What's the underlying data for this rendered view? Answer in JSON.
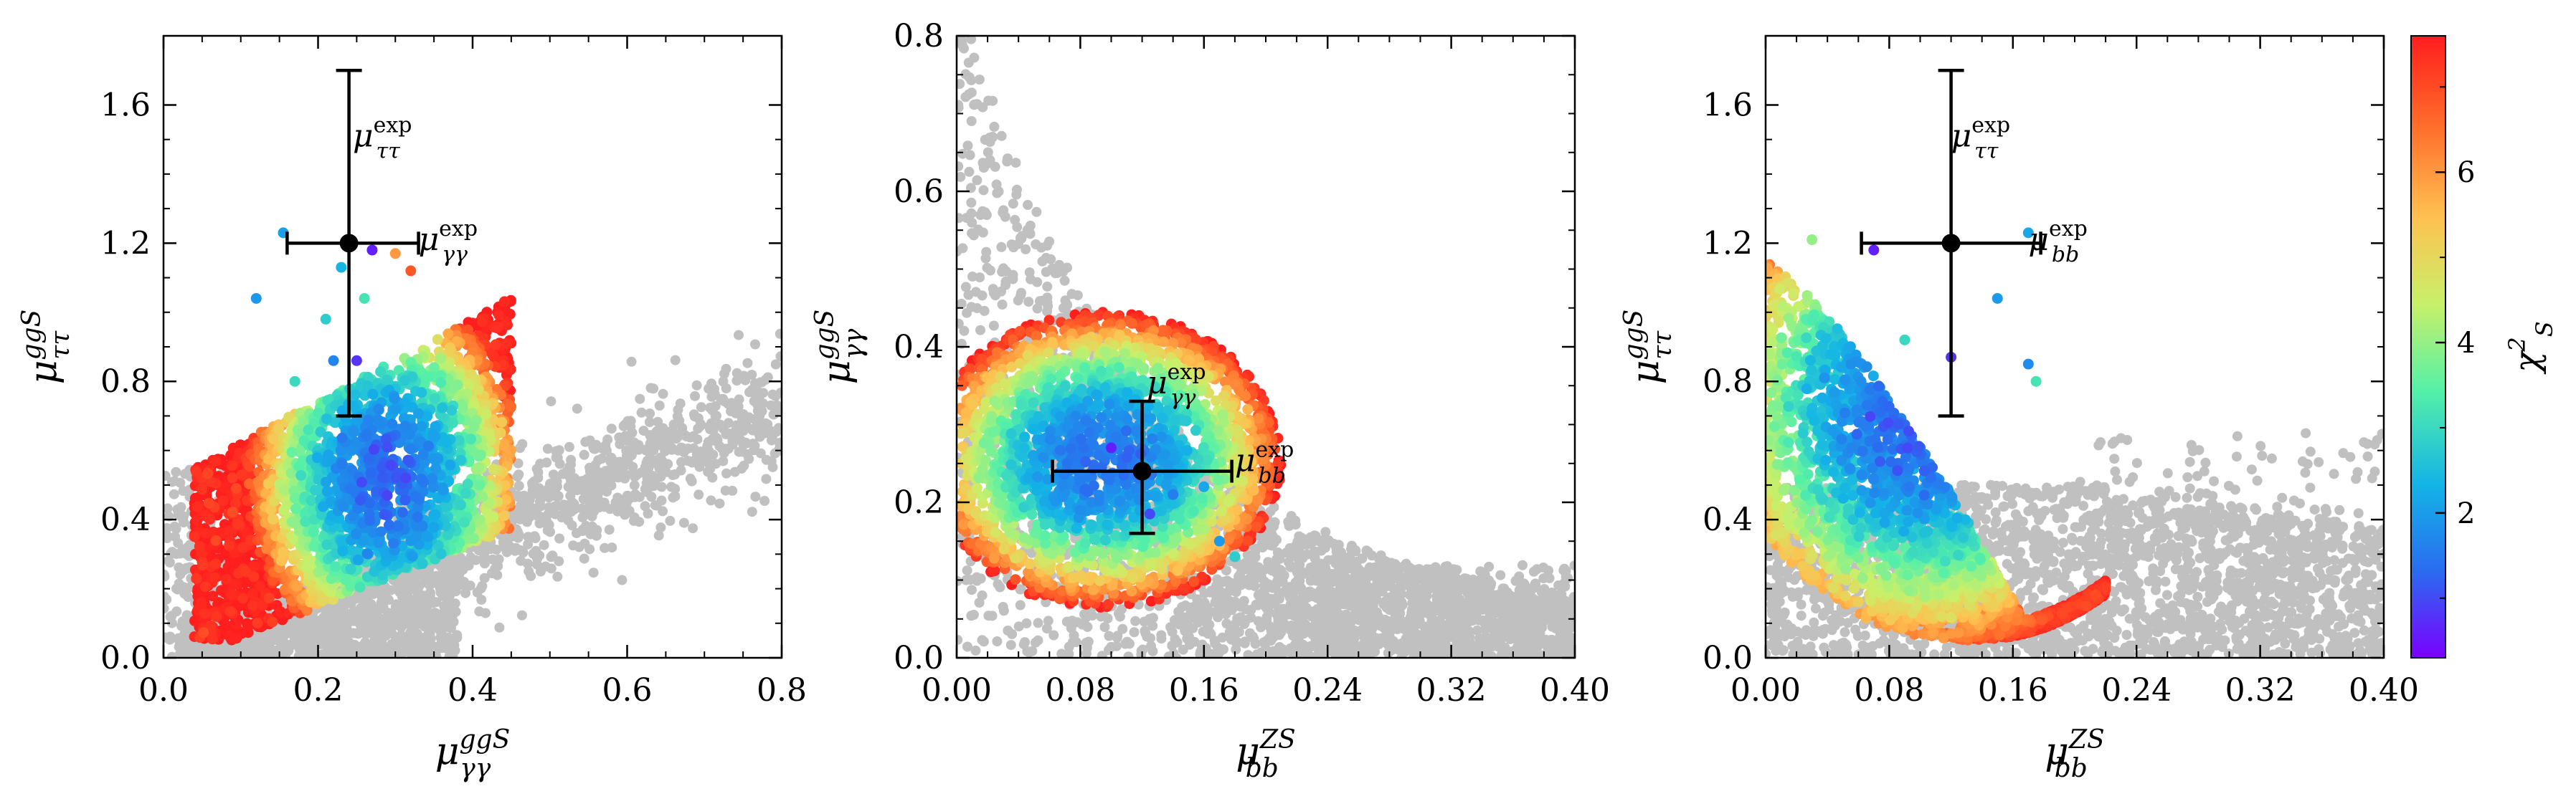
{
  "colorbar": {
    "label_base": "χ",
    "label_sup": "2",
    "label_sub": "S",
    "range": [
      0.3,
      7.6
    ],
    "ticks": [
      2,
      4,
      6
    ],
    "tick_labels": [
      "2",
      "4",
      "6"
    ],
    "colors": [
      "#7a00ff",
      "#2a6cf0",
      "#14b4e6",
      "#55f0a8",
      "#c8f06a",
      "#ffc050",
      "#ff6a2a",
      "#ff1e1e"
    ]
  },
  "chart_data": [
    {
      "type": "scatter",
      "id": "left",
      "xlabel_base": "μ",
      "xlabel_sub": "γγ",
      "xlabel_sup": "ggS",
      "ylabel_base": "μ",
      "ylabel_sub": "ττ",
      "ylabel_sup": "ggS",
      "xlim": [
        0.0,
        0.8
      ],
      "ylim": [
        0.0,
        1.8
      ],
      "xticks": [
        0.0,
        0.2,
        0.4,
        0.6,
        0.8
      ],
      "xtick_labels": [
        "0.0",
        "0.2",
        "0.4",
        "0.6",
        "0.8"
      ],
      "yticks": [
        0.0,
        0.4,
        0.8,
        1.2,
        1.6
      ],
      "ytick_labels": [
        "0.0",
        "0.4",
        "0.8",
        "1.2",
        "1.6"
      ],
      "grey_color": "#c0c0c0",
      "experimental_point": {
        "x": 0.24,
        "y": 1.2,
        "x_err": [
          0.08,
          0.09
        ],
        "y_err": [
          0.5,
          0.5
        ]
      },
      "annotations": [
        {
          "base": "μ",
          "sub": "ττ",
          "sup": "exp",
          "x": 0.245,
          "y": 1.48
        },
        {
          "base": "μ",
          "sub": "γγ",
          "sup": "exp",
          "x": 0.33,
          "y": 1.18
        }
      ],
      "outliers": [
        {
          "x": 0.155,
          "y": 1.23,
          "c": 2.1
        },
        {
          "x": 0.27,
          "y": 1.18,
          "c": 0.6
        },
        {
          "x": 0.12,
          "y": 1.04,
          "c": 2.0
        },
        {
          "x": 0.23,
          "y": 1.13,
          "c": 2.4
        },
        {
          "x": 0.25,
          "y": 0.86,
          "c": 0.8
        },
        {
          "x": 0.22,
          "y": 0.86,
          "c": 1.7
        },
        {
          "x": 0.17,
          "y": 0.8,
          "c": 3.0
        },
        {
          "x": 0.21,
          "y": 0.98,
          "c": 2.8
        },
        {
          "x": 0.26,
          "y": 1.04,
          "c": 3.2
        },
        {
          "x": 0.3,
          "y": 1.17,
          "c": 6.0
        },
        {
          "x": 0.32,
          "y": 1.12,
          "c": 6.8
        }
      ]
    },
    {
      "type": "scatter",
      "id": "middle",
      "xlabel_base": "μ",
      "xlabel_sub": "bb",
      "xlabel_sup": "ZS",
      "ylabel_base": "μ",
      "ylabel_sub": "γγ",
      "ylabel_sup": "ggS",
      "xlim": [
        0.0,
        0.4
      ],
      "ylim": [
        0.0,
        0.8
      ],
      "xticks": [
        0.0,
        0.08,
        0.16,
        0.24,
        0.32,
        0.4
      ],
      "xtick_labels": [
        "0.00",
        "0.08",
        "0.16",
        "0.24",
        "0.32",
        "0.40"
      ],
      "yticks": [
        0.0,
        0.2,
        0.4,
        0.6,
        0.8
      ],
      "ytick_labels": [
        "0.0",
        "0.2",
        "0.4",
        "0.6",
        "0.8"
      ],
      "grey_color": "#c0c0c0",
      "experimental_point": {
        "x": 0.12,
        "y": 0.24,
        "x_err": [
          0.058,
          0.058
        ],
        "y_err": [
          0.08,
          0.09
        ]
      },
      "annotations": [
        {
          "base": "μ",
          "sub": "γγ",
          "sup": "exp",
          "x": 0.123,
          "y": 0.34
        },
        {
          "base": "μ",
          "sub": "bb",
          "sup": "exp",
          "x": 0.18,
          "y": 0.24
        }
      ],
      "outliers": [
        {
          "x": 0.1,
          "y": 0.27,
          "c": 0.6
        },
        {
          "x": 0.125,
          "y": 0.185,
          "c": 1.0
        },
        {
          "x": 0.14,
          "y": 0.21,
          "c": 1.6
        },
        {
          "x": 0.16,
          "y": 0.22,
          "c": 2.2
        },
        {
          "x": 0.17,
          "y": 0.15,
          "c": 2.0
        },
        {
          "x": 0.08,
          "y": 0.19,
          "c": 1.8
        },
        {
          "x": 0.18,
          "y": 0.13,
          "c": 2.8
        }
      ]
    },
    {
      "type": "scatter",
      "id": "right",
      "xlabel_base": "μ",
      "xlabel_sub": "bb",
      "xlabel_sup": "ZS",
      "ylabel_base": "μ",
      "ylabel_sub": "ττ",
      "ylabel_sup": "ggS",
      "xlim": [
        0.0,
        0.4
      ],
      "ylim": [
        0.0,
        1.8
      ],
      "xticks": [
        0.0,
        0.08,
        0.16,
        0.24,
        0.32,
        0.4
      ],
      "xtick_labels": [
        "0.00",
        "0.08",
        "0.16",
        "0.24",
        "0.32",
        "0.40"
      ],
      "yticks": [
        0.0,
        0.4,
        0.8,
        1.2,
        1.6
      ],
      "ytick_labels": [
        "0.0",
        "0.4",
        "0.8",
        "1.2",
        "1.6"
      ],
      "grey_color": "#c0c0c0",
      "experimental_point": {
        "x": 0.12,
        "y": 1.2,
        "x_err": [
          0.058,
          0.058
        ],
        "y_err": [
          0.5,
          0.5
        ]
      },
      "annotations": [
        {
          "base": "μ",
          "sub": "ττ",
          "sup": "exp",
          "x": 0.12,
          "y": 1.48
        },
        {
          "base": "μ",
          "sub": "bb",
          "sup": "exp",
          "x": 0.17,
          "y": 1.18
        }
      ],
      "outliers": [
        {
          "x": 0.03,
          "y": 1.21,
          "c": 4.0
        },
        {
          "x": 0.07,
          "y": 1.18,
          "c": 0.6
        },
        {
          "x": 0.17,
          "y": 1.23,
          "c": 2.2
        },
        {
          "x": 0.15,
          "y": 1.04,
          "c": 2.0
        },
        {
          "x": 0.12,
          "y": 0.87,
          "c": 0.8
        },
        {
          "x": 0.17,
          "y": 0.85,
          "c": 1.8
        },
        {
          "x": 0.175,
          "y": 0.8,
          "c": 3.2
        },
        {
          "x": 0.09,
          "y": 0.92,
          "c": 3.0
        }
      ]
    }
  ]
}
